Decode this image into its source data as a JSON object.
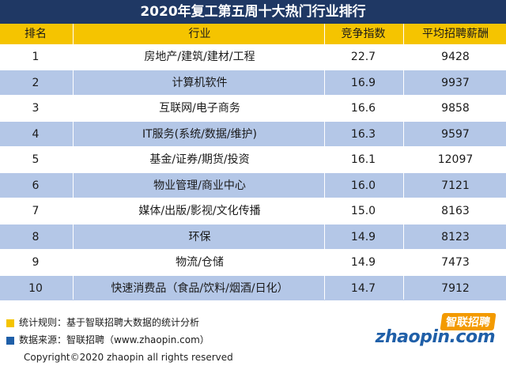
{
  "title": "2020年复工第五周十大热门行业排行",
  "columns": {
    "rank": "排名",
    "industry": "行业",
    "competition": "竞争指数",
    "salary": "平均招聘薪酬"
  },
  "rows": [
    {
      "rank": "1",
      "industry": "房地产/建筑/建材/工程",
      "competition": "22.7",
      "salary": "9428"
    },
    {
      "rank": "2",
      "industry": "计算机软件",
      "competition": "16.9",
      "salary": "9937"
    },
    {
      "rank": "3",
      "industry": "互联网/电子商务",
      "competition": "16.6",
      "salary": "9858"
    },
    {
      "rank": "4",
      "industry": "IT服务(系统/数据/维护)",
      "competition": "16.3",
      "salary": "9597"
    },
    {
      "rank": "5",
      "industry": "基金/证券/期货/投资",
      "competition": "16.1",
      "salary": "12097"
    },
    {
      "rank": "6",
      "industry": "物业管理/商业中心",
      "competition": "16.0",
      "salary": "7121"
    },
    {
      "rank": "7",
      "industry": "媒体/出版/影视/文化传播",
      "competition": "15.0",
      "salary": "8163"
    },
    {
      "rank": "8",
      "industry": "环保",
      "competition": "14.9",
      "salary": "8123"
    },
    {
      "rank": "9",
      "industry": "物流/仓储",
      "competition": "14.9",
      "salary": "7473"
    },
    {
      "rank": "10",
      "industry": "快速消费品（食品/饮料/烟酒/日化）",
      "competition": "14.7",
      "salary": "7912"
    }
  ],
  "footer": {
    "stats_rule": "统计规则：基于智联招聘大数据的统计分析",
    "data_source": "数据来源：智联招聘（www.zhaopin.com）",
    "copyright": "Copyright©2020 zhaopin all rights reserved"
  },
  "logo": {
    "cn": "智联招聘",
    "en": "zhaopin.com"
  },
  "colors": {
    "title_bg": "#1f3864",
    "header_bg": "#f5c400",
    "stripe": "#b4c7e7",
    "legend_blue": "#1f5fa8",
    "logo_orange": "#f39a00"
  }
}
